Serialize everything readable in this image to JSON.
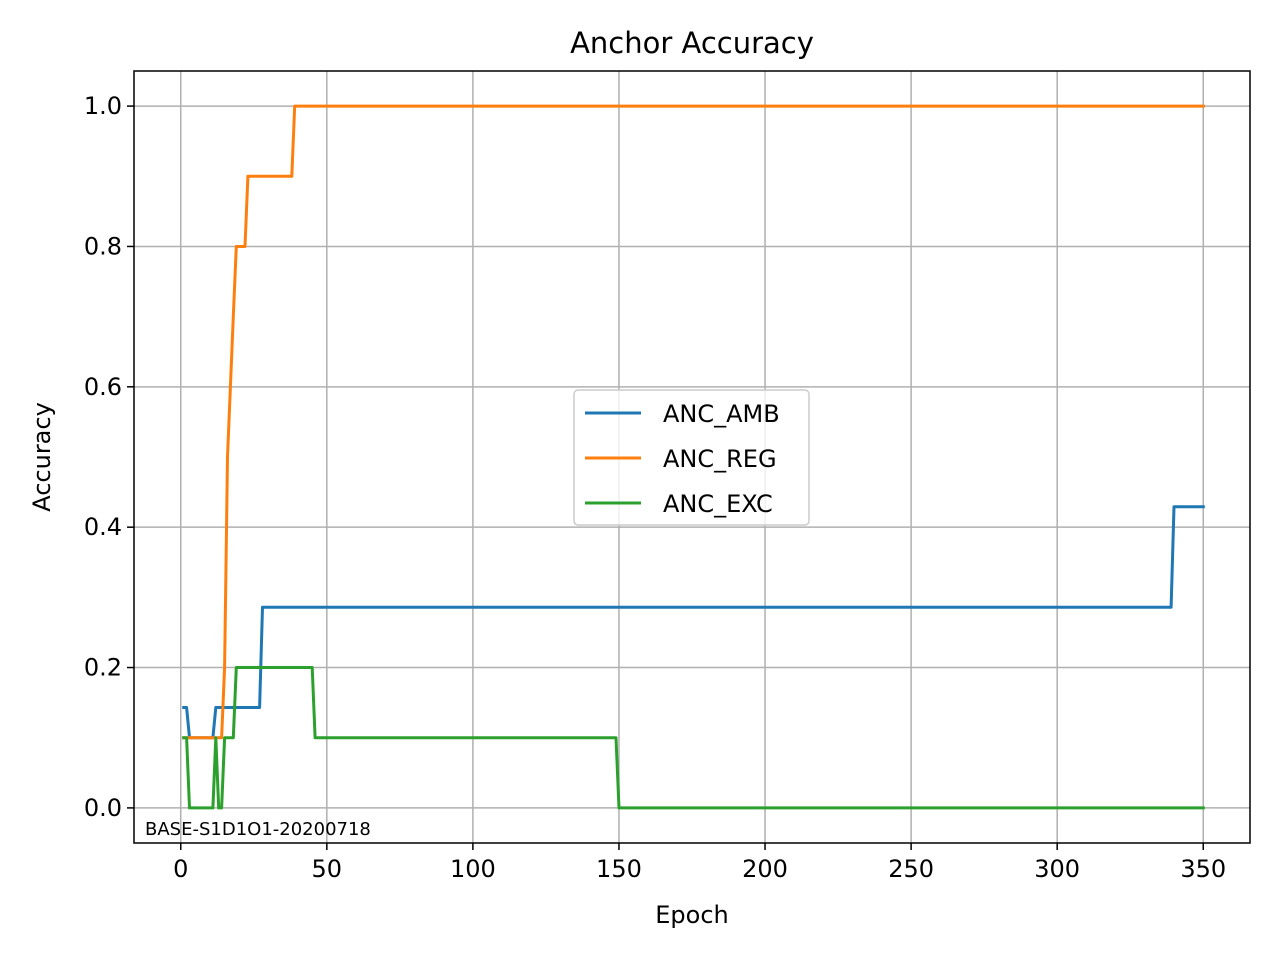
{
  "chart_data": {
    "type": "line",
    "title": "Anchor Accuracy",
    "xlabel": "Epoch",
    "ylabel": "Accuracy",
    "xlim": [
      -16,
      366
    ],
    "ylim": [
      -0.05,
      1.05
    ],
    "xticks": [
      0,
      50,
      100,
      150,
      200,
      250,
      300,
      350
    ],
    "xtick_labels": [
      "0",
      "50",
      "100",
      "150",
      "200",
      "250",
      "300",
      "350"
    ],
    "yticks": [
      0.0,
      0.2,
      0.4,
      0.6,
      0.8,
      1.0
    ],
    "ytick_labels": [
      "0.0",
      "0.2",
      "0.4",
      "0.6",
      "0.8",
      "1.0"
    ],
    "grid": true,
    "legend_position": "center",
    "annotation": "BASE-S1D1O1-20200718",
    "series": [
      {
        "name": "ANC_AMB",
        "color": "#1f77b4",
        "x": [
          1,
          2,
          3,
          11,
          12,
          27,
          28,
          339,
          340,
          350
        ],
        "y": [
          0.143,
          0.143,
          0.1,
          0.1,
          0.143,
          0.143,
          0.286,
          0.286,
          0.429,
          0.429
        ]
      },
      {
        "name": "ANC_REG",
        "color": "#ff7f0e",
        "x": [
          1,
          14,
          15,
          16,
          18,
          19,
          22,
          23,
          24,
          38,
          39,
          350
        ],
        "y": [
          0.1,
          0.1,
          0.2,
          0.5,
          0.7,
          0.8,
          0.8,
          0.9,
          0.9,
          0.9,
          1.0,
          1.0
        ]
      },
      {
        "name": "ANC_EXC",
        "color": "#2ca02c",
        "x": [
          1,
          2,
          3,
          10,
          11,
          12,
          13,
          14,
          15,
          18,
          19,
          45,
          46,
          149,
          150,
          350
        ],
        "y": [
          0.1,
          0.1,
          0.0,
          0.0,
          0.0,
          0.1,
          0.0,
          0.0,
          0.1,
          0.1,
          0.2,
          0.2,
          0.1,
          0.1,
          0.0,
          0.0
        ]
      }
    ]
  }
}
